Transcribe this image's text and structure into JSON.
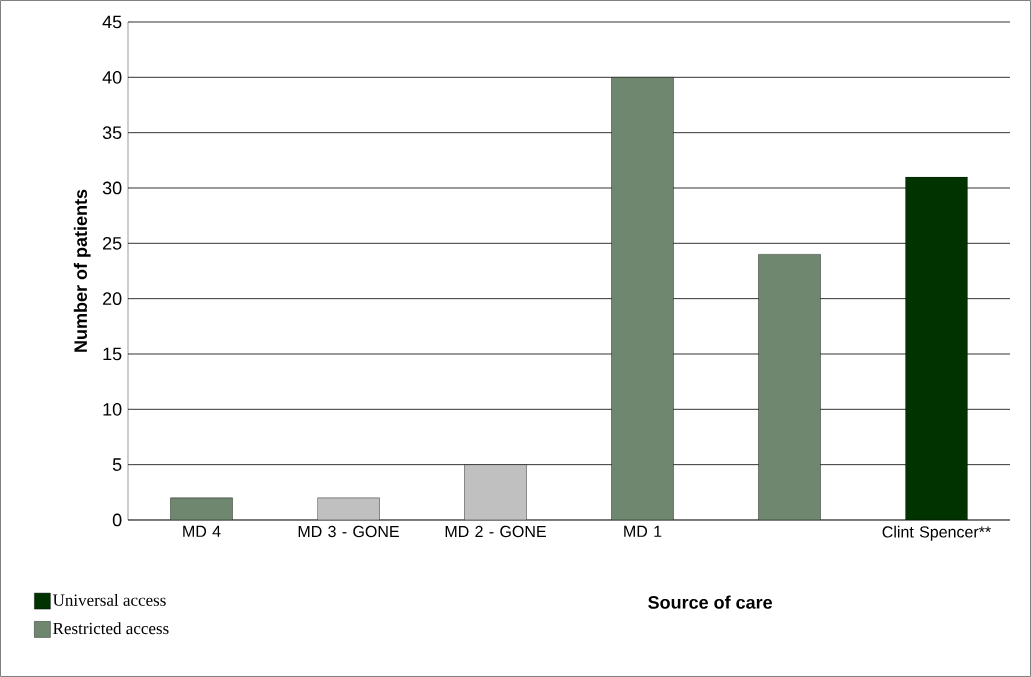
{
  "chart_data": {
    "type": "bar",
    "xlabel": "Source of care",
    "ylabel": "Number of patients",
    "categories": [
      "MD 4",
      "MD 3 - GONE",
      "MD 2 - GONE",
      "MD 1",
      null,
      "Clint Spencer**"
    ],
    "series": [
      {
        "name": "Universal access",
        "color": "#003300",
        "values": [
          null,
          null,
          null,
          null,
          null,
          31
        ]
      },
      {
        "name": "Restricted access",
        "color": "#6f876f",
        "values": [
          2,
          null,
          null,
          40,
          24,
          null
        ]
      },
      {
        "color": "#c0c0c0",
        "values": [
          null,
          2,
          5,
          null,
          null,
          null
        ]
      }
    ],
    "ylim": [
      0,
      45
    ],
    "yticks": [
      0,
      5,
      10,
      15,
      20,
      25,
      30,
      35,
      40,
      45
    ],
    "grid": "y",
    "legend": "bottom left"
  }
}
